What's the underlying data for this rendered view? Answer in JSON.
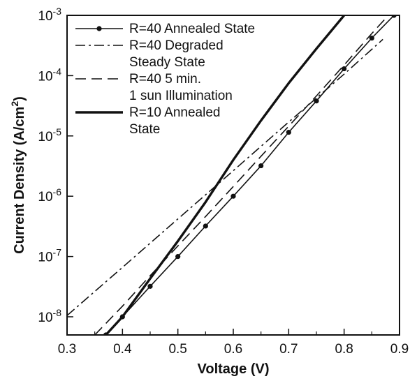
{
  "chart_data": {
    "type": "line",
    "xlabel": "Voltage (V)",
    "ylabel": {
      "prefix": "Current Density (A/cm",
      "sup": "2",
      "suffix": ")"
    },
    "xlim": [
      0.3,
      0.9
    ],
    "ylim": [
      5e-09,
      0.001
    ],
    "y_scale": "log",
    "legend_position": "top-left",
    "grid": false,
    "x_ticks": [
      {
        "value": 0.3,
        "label": "0.3"
      },
      {
        "value": 0.4,
        "label": "0.4"
      },
      {
        "value": 0.5,
        "label": "0.5"
      },
      {
        "value": 0.6,
        "label": "0.6"
      },
      {
        "value": 0.7,
        "label": "0.7"
      },
      {
        "value": 0.8,
        "label": "0.8"
      },
      {
        "value": 0.9,
        "label": "0.9"
      }
    ],
    "y_ticks": [
      {
        "value": 1e-08,
        "base": "10",
        "exp": "-8"
      },
      {
        "value": 1e-07,
        "base": "10",
        "exp": "-7"
      },
      {
        "value": 1e-06,
        "base": "10",
        "exp": "-6"
      },
      {
        "value": 1e-05,
        "base": "10",
        "exp": "-5"
      },
      {
        "value": 0.0001,
        "base": "10",
        "exp": "-4"
      },
      {
        "value": 0.001,
        "base": "10",
        "exp": "-3"
      }
    ],
    "series": [
      {
        "name": [
          "R=40 Annealed State"
        ],
        "style": "solid-markers",
        "color": "#111111",
        "x": [
          0.37,
          0.4,
          0.45,
          0.5,
          0.55,
          0.6,
          0.65,
          0.7,
          0.75,
          0.8,
          0.85,
          0.89
        ],
        "y": [
          5e-09,
          1e-08,
          3.2e-08,
          1e-07,
          3.2e-07,
          1e-06,
          3.2e-06,
          1.15e-05,
          3.8e-05,
          0.00013,
          0.00042,
          0.001
        ]
      },
      {
        "name": [
          "R=40 Degraded",
          "Steady State"
        ],
        "style": "dash-dot",
        "color": "#111111",
        "x": [
          0.3,
          0.4,
          0.5,
          0.6,
          0.7,
          0.8,
          0.87
        ],
        "y": [
          1.05e-08,
          6.6e-08,
          4.2e-07,
          2.65e-06,
          1.7e-05,
          0.000106,
          0.0004
        ]
      },
      {
        "name": [
          "R=40 5 min.",
          "1 sun Illumination"
        ],
        "style": "dashed",
        "color": "#111111",
        "x": [
          0.35,
          0.4,
          0.45,
          0.5,
          0.55,
          0.6,
          0.65,
          0.7,
          0.75,
          0.8,
          0.85,
          0.88
        ],
        "y": [
          5e-09,
          1.5e-08,
          4.8e-08,
          1.5e-07,
          4.6e-07,
          1.45e-06,
          4.6e-06,
          1.45e-05,
          4.6e-05,
          0.00015,
          0.0005,
          0.001
        ]
      },
      {
        "name": [
          "R=10 Annealed",
          "State"
        ],
        "style": "thick",
        "color": "#111111",
        "x": [
          0.37,
          0.4,
          0.45,
          0.5,
          0.55,
          0.6,
          0.65,
          0.7,
          0.75,
          0.8
        ],
        "y": [
          5e-09,
          1e-08,
          4.3e-08,
          1.8e-07,
          8e-07,
          4e-06,
          1.8e-05,
          7.5e-05,
          0.00028,
          0.001
        ]
      }
    ]
  }
}
